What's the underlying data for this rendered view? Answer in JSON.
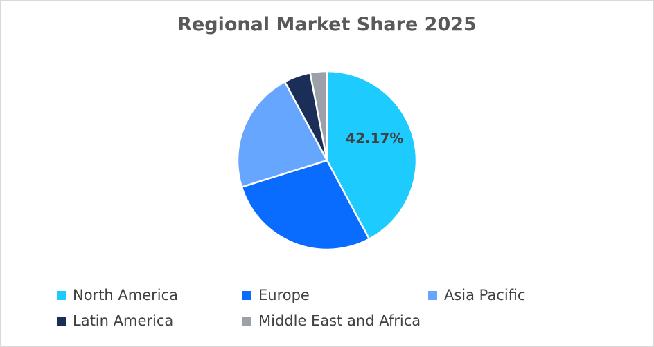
{
  "chart_data": {
    "type": "pie",
    "title": "Regional Market Share 2025",
    "categories": [
      "North America",
      "Europe",
      "Asia Pacific",
      "Latin America",
      "Middle East and Africa"
    ],
    "values": [
      42.17,
      28.0,
      22.0,
      4.8,
      3.03
    ],
    "colors": [
      "#1ecbff",
      "#0a6cff",
      "#66a6ff",
      "#1b2e57",
      "#9ba0a9"
    ],
    "data_labels": [
      "42.17%",
      "",
      "",
      "",
      ""
    ],
    "legend_position": "bottom"
  }
}
